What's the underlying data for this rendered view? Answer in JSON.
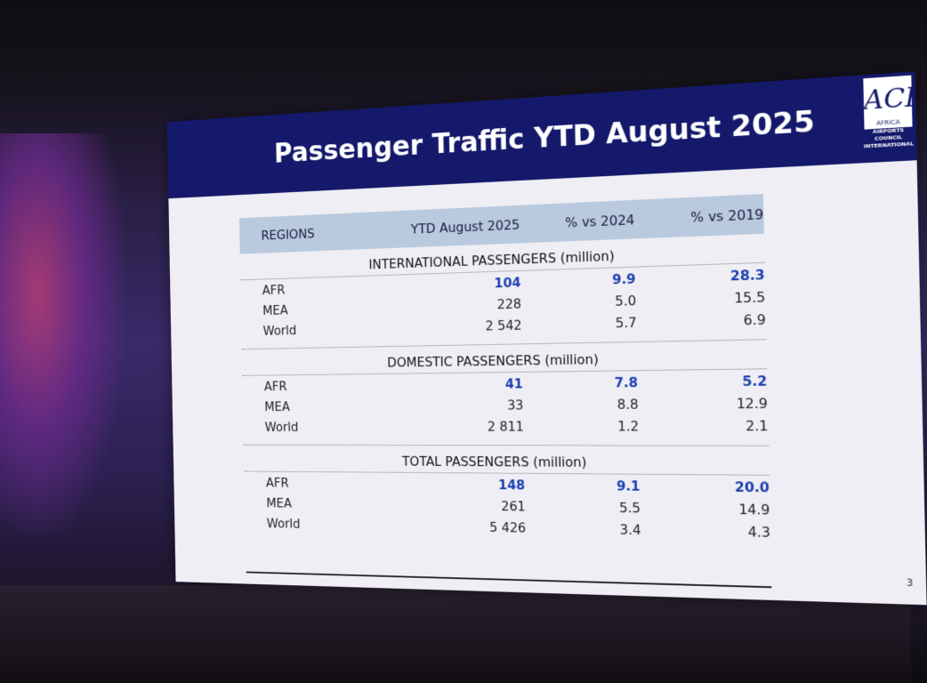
{
  "slide": {
    "title": "Passenger Traffic YTD August 2025",
    "page_number": "3",
    "logo": {
      "letters": "ACI",
      "region": "AFRICA",
      "org_line1": "AIRPORTS COUNCIL",
      "org_line2": "INTERNATIONAL"
    },
    "colors": {
      "header": "#14196b",
      "highlight": "#1f3fb0",
      "table_header": "#b9c9de"
    }
  },
  "table": {
    "headers": [
      "REGIONS",
      "YTD August 2025",
      "% vs 2024",
      "% vs 2019"
    ],
    "sections": [
      {
        "title": "INTERNATIONAL PASSENGERS (million)",
        "rows": [
          [
            "AFR",
            "104",
            "9.9",
            "28.3"
          ],
          [
            "MEA",
            "228",
            "5.0",
            "15.5"
          ],
          [
            "World",
            "2 542",
            "5.7",
            "6.9"
          ]
        ]
      },
      {
        "title": "DOMESTIC PASSENGERS (million)",
        "rows": [
          [
            "AFR",
            "41",
            "7.8",
            "5.2"
          ],
          [
            "MEA",
            "33",
            "8.8",
            "12.9"
          ],
          [
            "World",
            "2 811",
            "1.2",
            "2.1"
          ]
        ]
      },
      {
        "title": "TOTAL PASSENGERS (million)",
        "rows": [
          [
            "AFR",
            "148",
            "9.1",
            "20.0"
          ],
          [
            "MEA",
            "261",
            "5.5",
            "14.9"
          ],
          [
            "World",
            "5 426",
            "3.4",
            "4.3"
          ]
        ]
      }
    ]
  }
}
